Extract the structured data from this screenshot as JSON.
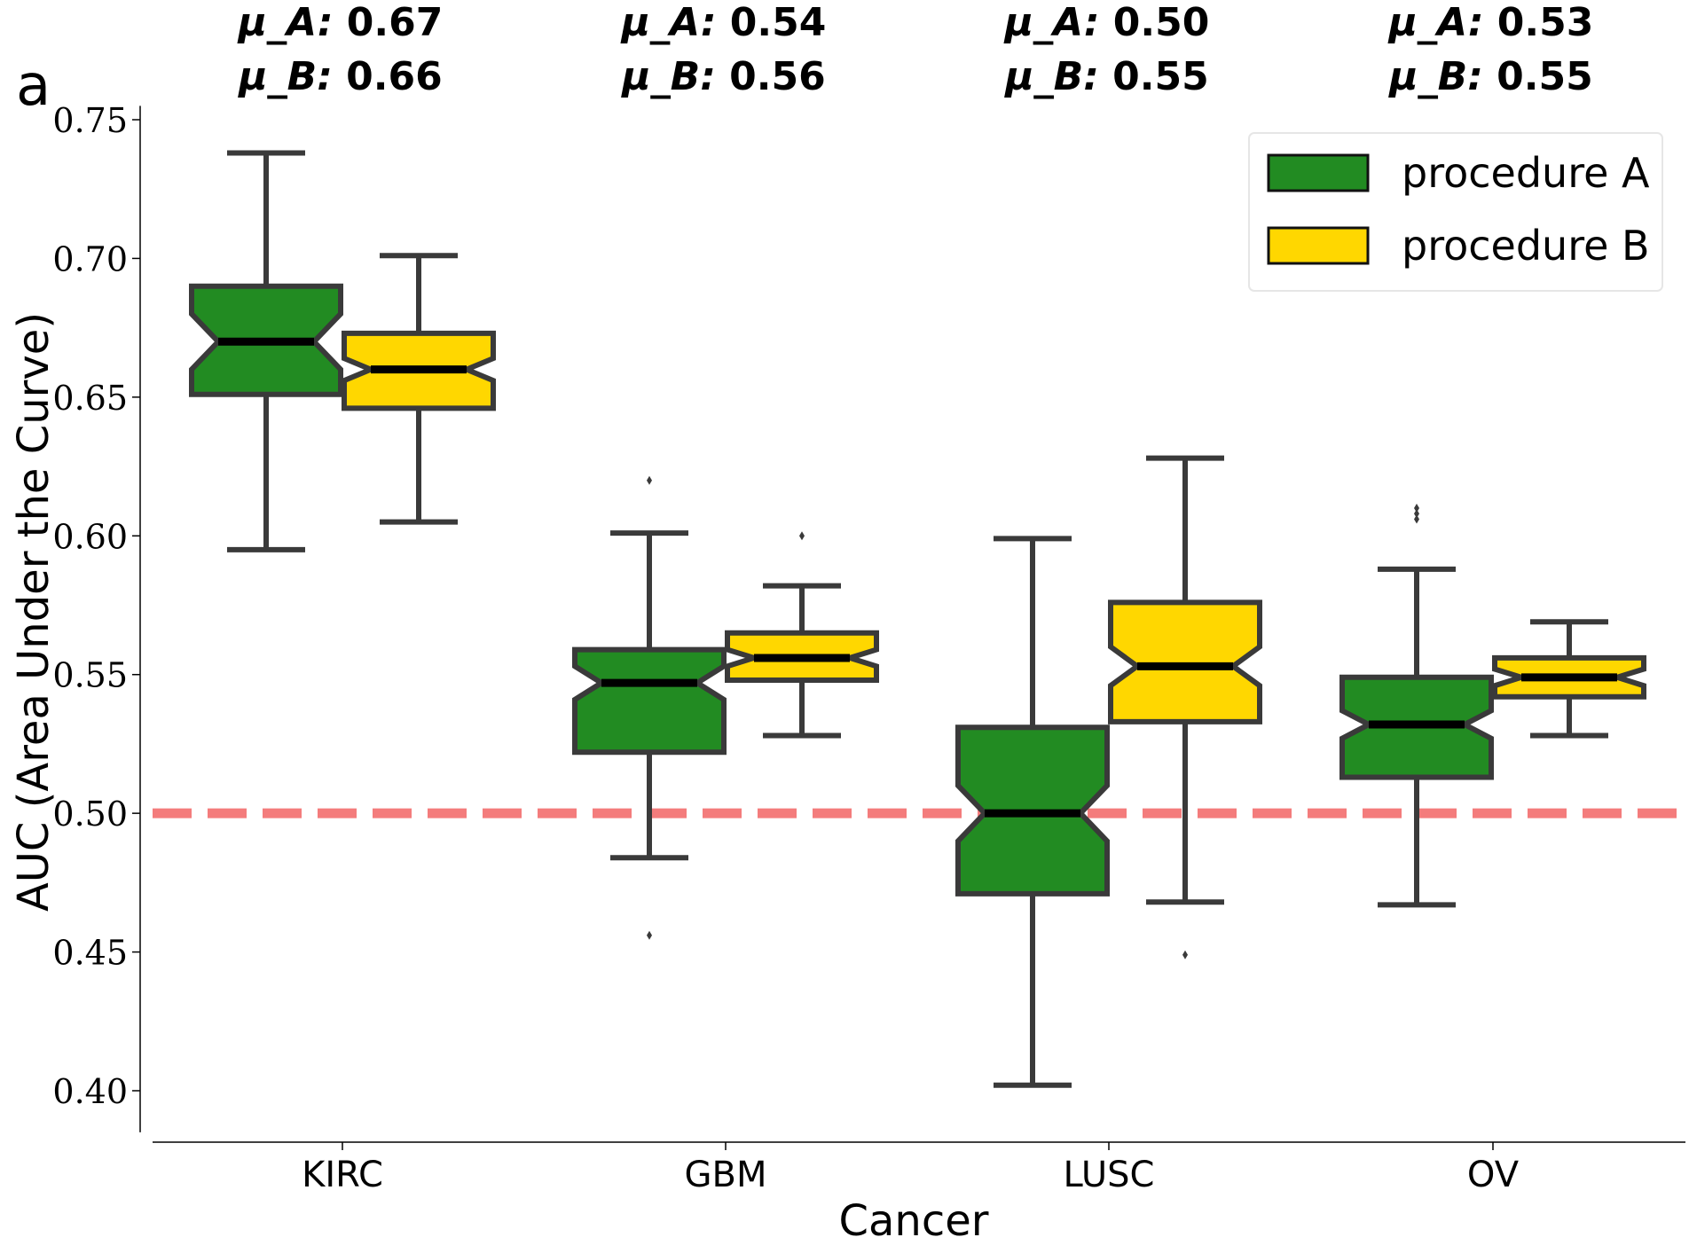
{
  "chart_data": {
    "type": "boxplot",
    "panel_label": "a",
    "xlabel": "Cancer",
    "ylabel": "AUC (Area Under the Curve)",
    "ylim": [
      0.385,
      0.755
    ],
    "yticks": [
      0.4,
      0.45,
      0.5,
      0.55,
      0.6,
      0.65,
      0.7,
      0.75
    ],
    "ytick_labels": [
      "0.40",
      "0.45",
      "0.50",
      "0.55",
      "0.60",
      "0.65",
      "0.70",
      "0.75"
    ],
    "categories": [
      "KIRC",
      "GBM",
      "LUSC",
      "OV"
    ],
    "notched": true,
    "legend": {
      "position": "top-right",
      "entries": [
        "procedure A",
        "procedure B"
      ]
    },
    "reference_line": {
      "y": 0.5,
      "style": "dashed",
      "color": "#f47c7c"
    },
    "means": [
      {
        "mu_a_label": "μ_A:",
        "mu_a": "0.67",
        "mu_b_label": "μ_B:",
        "mu_b": "0.66"
      },
      {
        "mu_a_label": "μ_A:",
        "mu_a": "0.54",
        "mu_b_label": "μ_B:",
        "mu_b": "0.56"
      },
      {
        "mu_a_label": "μ_A:",
        "mu_a": "0.50",
        "mu_b_label": "μ_B:",
        "mu_b": "0.55"
      },
      {
        "mu_a_label": "μ_A:",
        "mu_a": "0.53",
        "mu_b_label": "μ_B:",
        "mu_b": "0.55"
      }
    ],
    "series": [
      {
        "name": "procedure A",
        "color": "#228b22",
        "boxes": [
          {
            "whislo": 0.595,
            "q1": 0.651,
            "med": 0.67,
            "q3": 0.69,
            "whishi": 0.738,
            "notch": [
              0.66,
              0.68
            ],
            "fliers": []
          },
          {
            "whislo": 0.484,
            "q1": 0.522,
            "med": 0.547,
            "q3": 0.559,
            "whishi": 0.601,
            "notch": [
              0.541,
              0.553
            ],
            "fliers": [
              0.62,
              0.456
            ]
          },
          {
            "whislo": 0.402,
            "q1": 0.471,
            "med": 0.5,
            "q3": 0.531,
            "whishi": 0.599,
            "notch": [
              0.49,
              0.51
            ],
            "fliers": []
          },
          {
            "whislo": 0.467,
            "q1": 0.513,
            "med": 0.532,
            "q3": 0.549,
            "whishi": 0.588,
            "notch": [
              0.527,
              0.537
            ],
            "fliers": [
              0.61,
              0.608,
              0.606
            ]
          }
        ]
      },
      {
        "name": "procedure B",
        "color": "#ffd700",
        "boxes": [
          {
            "whislo": 0.605,
            "q1": 0.646,
            "med": 0.66,
            "q3": 0.673,
            "whishi": 0.701,
            "notch": [
              0.656,
              0.664
            ],
            "fliers": []
          },
          {
            "whislo": 0.528,
            "q1": 0.548,
            "med": 0.556,
            "q3": 0.565,
            "whishi": 0.582,
            "notch": [
              0.553,
              0.559
            ],
            "fliers": [
              0.6
            ]
          },
          {
            "whislo": 0.468,
            "q1": 0.533,
            "med": 0.553,
            "q3": 0.576,
            "whishi": 0.628,
            "notch": [
              0.546,
              0.56
            ],
            "fliers": [
              0.449
            ]
          },
          {
            "whislo": 0.528,
            "q1": 0.542,
            "med": 0.549,
            "q3": 0.556,
            "whishi": 0.569,
            "notch": [
              0.546,
              0.552
            ],
            "fliers": []
          }
        ]
      }
    ]
  }
}
